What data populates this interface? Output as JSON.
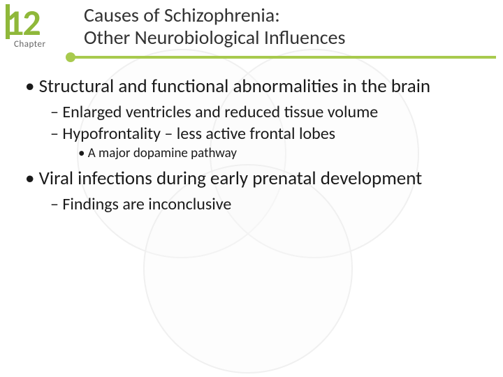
{
  "chapter": {
    "number": "12",
    "label": "Chapter"
  },
  "title": {
    "line1": "Causes of Schizophrenia:",
    "line2": "Other Neurobiological Influences"
  },
  "bullets": {
    "b1": "Structural and functional abnormalities in the brain",
    "b1a": "Enlarged ventricles and reduced tissue volume",
    "b1b": "Hypofrontality – less active frontal lobes",
    "b1b1": "A major dopamine pathway",
    "b2": "Viral infections during early prenatal development",
    "b2a": "Findings are inconclusive"
  },
  "colors": {
    "accent": "#8fb83a",
    "rule": "#a8ca4e",
    "text": "#1a1a1a",
    "bg": "#ffffff",
    "circle_stroke": "#f0f0f0"
  }
}
